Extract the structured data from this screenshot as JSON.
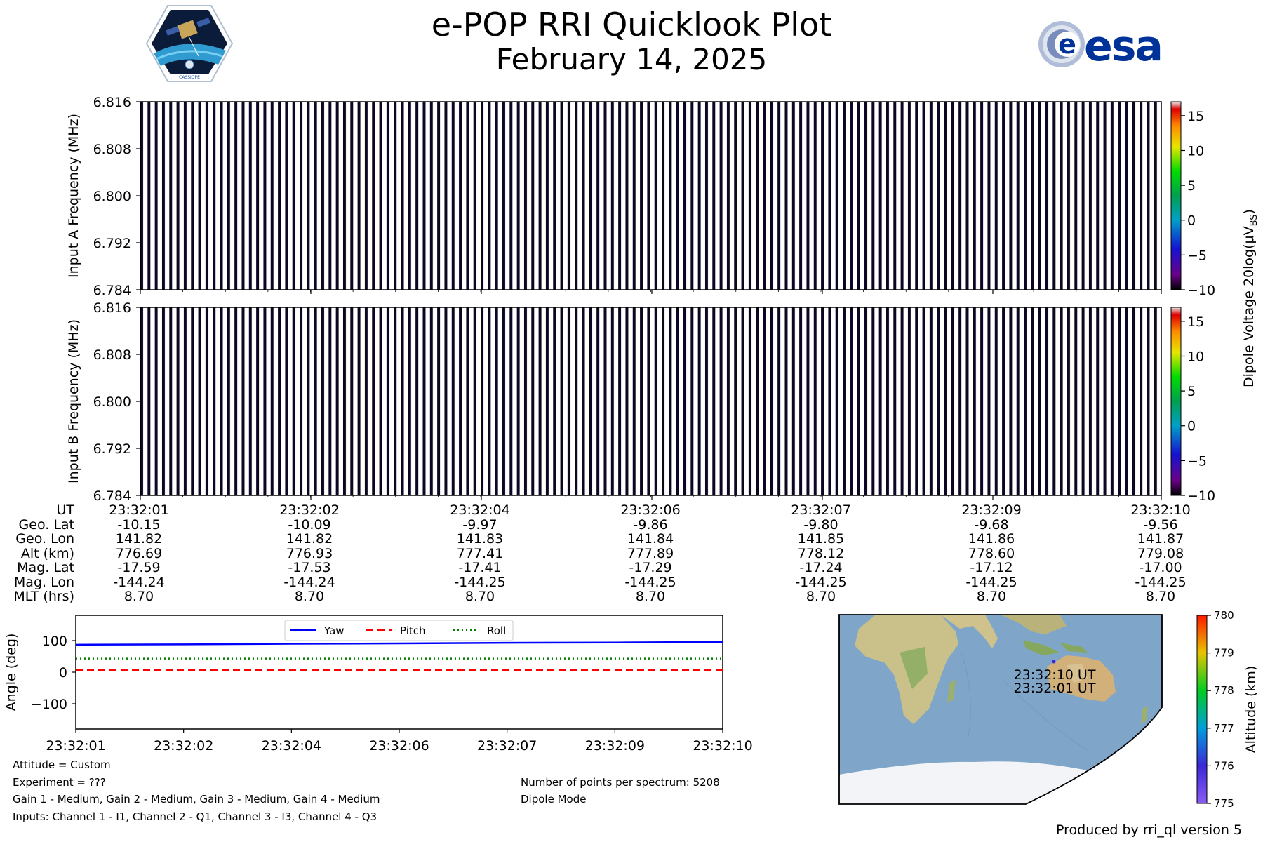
{
  "header": {
    "title": "e-POP RRI Quicklook Plot",
    "date": "February 14, 2025",
    "cassiope_logo_text": "CASSIOPE",
    "esa_logo_text": "esa"
  },
  "spectrogram": {
    "colorbar_label": "Dipole Voltage 20log(μV",
    "colorbar_label_sub": "BS",
    "colorbar_ticks": [
      15,
      10,
      5,
      0,
      -5,
      -10
    ],
    "colorbar_tick_labels": [
      "15",
      "10",
      "5",
      "0",
      "−5",
      "−10"
    ],
    "colorbar_range": [
      -10,
      17
    ],
    "panels": [
      {
        "name": "Input A",
        "ylabel": "Input A Frequency (MHz)",
        "yticks": [
          "6.816",
          "6.808",
          "6.800",
          "6.792",
          "6.784"
        ]
      },
      {
        "name": "Input B",
        "ylabel": "Input B Frequency (MHz)",
        "yticks": [
          "6.816",
          "6.808",
          "6.800",
          "6.792",
          "6.784"
        ]
      }
    ]
  },
  "metadata_table": {
    "rows": [
      {
        "label": "UT",
        "values": [
          "23:32:01",
          "23:32:02",
          "23:32:04",
          "23:32:06",
          "23:32:07",
          "23:32:09",
          "23:32:10"
        ]
      },
      {
        "label": "Geo. Lat",
        "values": [
          "-10.15",
          "-10.09",
          "-9.97",
          "-9.86",
          "-9.80",
          "-9.68",
          "-9.56"
        ]
      },
      {
        "label": "Geo. Lon",
        "values": [
          "141.82",
          "141.82",
          "141.83",
          "141.84",
          "141.85",
          "141.86",
          "141.87"
        ]
      },
      {
        "label": "Alt (km)",
        "values": [
          "776.69",
          "776.93",
          "777.41",
          "777.89",
          "778.12",
          "778.60",
          "779.08"
        ]
      },
      {
        "label": "Mag. Lat",
        "values": [
          "-17.59",
          "-17.53",
          "-17.41",
          "-17.29",
          "-17.24",
          "-17.12",
          "-17.00"
        ]
      },
      {
        "label": "Mag. Lon",
        "values": [
          "-144.24",
          "-144.24",
          "-144.25",
          "-144.25",
          "-144.25",
          "-144.25",
          "-144.25"
        ]
      },
      {
        "label": "MLT (hrs)",
        "values": [
          "8.70",
          "8.70",
          "8.70",
          "8.70",
          "8.70",
          "8.70",
          "8.70"
        ]
      }
    ]
  },
  "chart_data": {
    "type": "line",
    "title": "",
    "xlabel": "",
    "ylabel": "Angle (deg)",
    "x_tick_labels": [
      "23:32:01",
      "23:32:02",
      "23:32:04",
      "23:32:06",
      "23:32:07",
      "23:32:09",
      "23:32:10"
    ],
    "x": [
      0,
      1,
      2,
      3,
      4,
      5,
      6
    ],
    "ylim": [
      -180,
      180
    ],
    "yticks": [
      100,
      0,
      -100
    ],
    "ytick_labels": [
      "100",
      "0",
      "−100"
    ],
    "legend_location": "upper-center",
    "series": [
      {
        "name": "Yaw",
        "style": "solid",
        "color": "#0000ff",
        "values": [
          87,
          88,
          90,
          91,
          93,
          94,
          96
        ]
      },
      {
        "name": "Pitch",
        "style": "dashed",
        "color": "#ff0000",
        "values": [
          7,
          7,
          7,
          7,
          7,
          7,
          7
        ]
      },
      {
        "name": "Roll",
        "style": "dotted",
        "color": "#008000",
        "values": [
          43,
          43,
          43,
          43,
          43,
          43,
          43
        ]
      }
    ]
  },
  "map": {
    "start_label": "23:32:01 UT",
    "end_label": "23:32:10 UT",
    "colorbar_label": "Altitude (km)",
    "colorbar_ticks": [
      "780",
      "779",
      "778",
      "777",
      "776",
      "775"
    ],
    "colorbar_range": [
      775,
      780
    ]
  },
  "notes": {
    "attitude": "Attitude = Custom",
    "experiment": "Experiment = ???",
    "gains": "Gain 1 - Medium, Gain 2 - Medium, Gain 3 - Medium, Gain 4 - Medium",
    "inputs": "Inputs: Channel 1 - I1, Channel 2 - Q1, Channel 3 - I3, Channel 4 - Q3",
    "points": "Number of points per spectrum: 5208",
    "mode": "Dipole Mode",
    "produced_by": "Produced by rri_ql version 5"
  },
  "colors": {
    "yaw": "#0000ff",
    "pitch": "#ff0000",
    "roll": "#008000",
    "esa_blue": "#003399",
    "ocean": "#7fa6c8",
    "land": "#c9c08a",
    "ice": "#f2f4f7"
  }
}
